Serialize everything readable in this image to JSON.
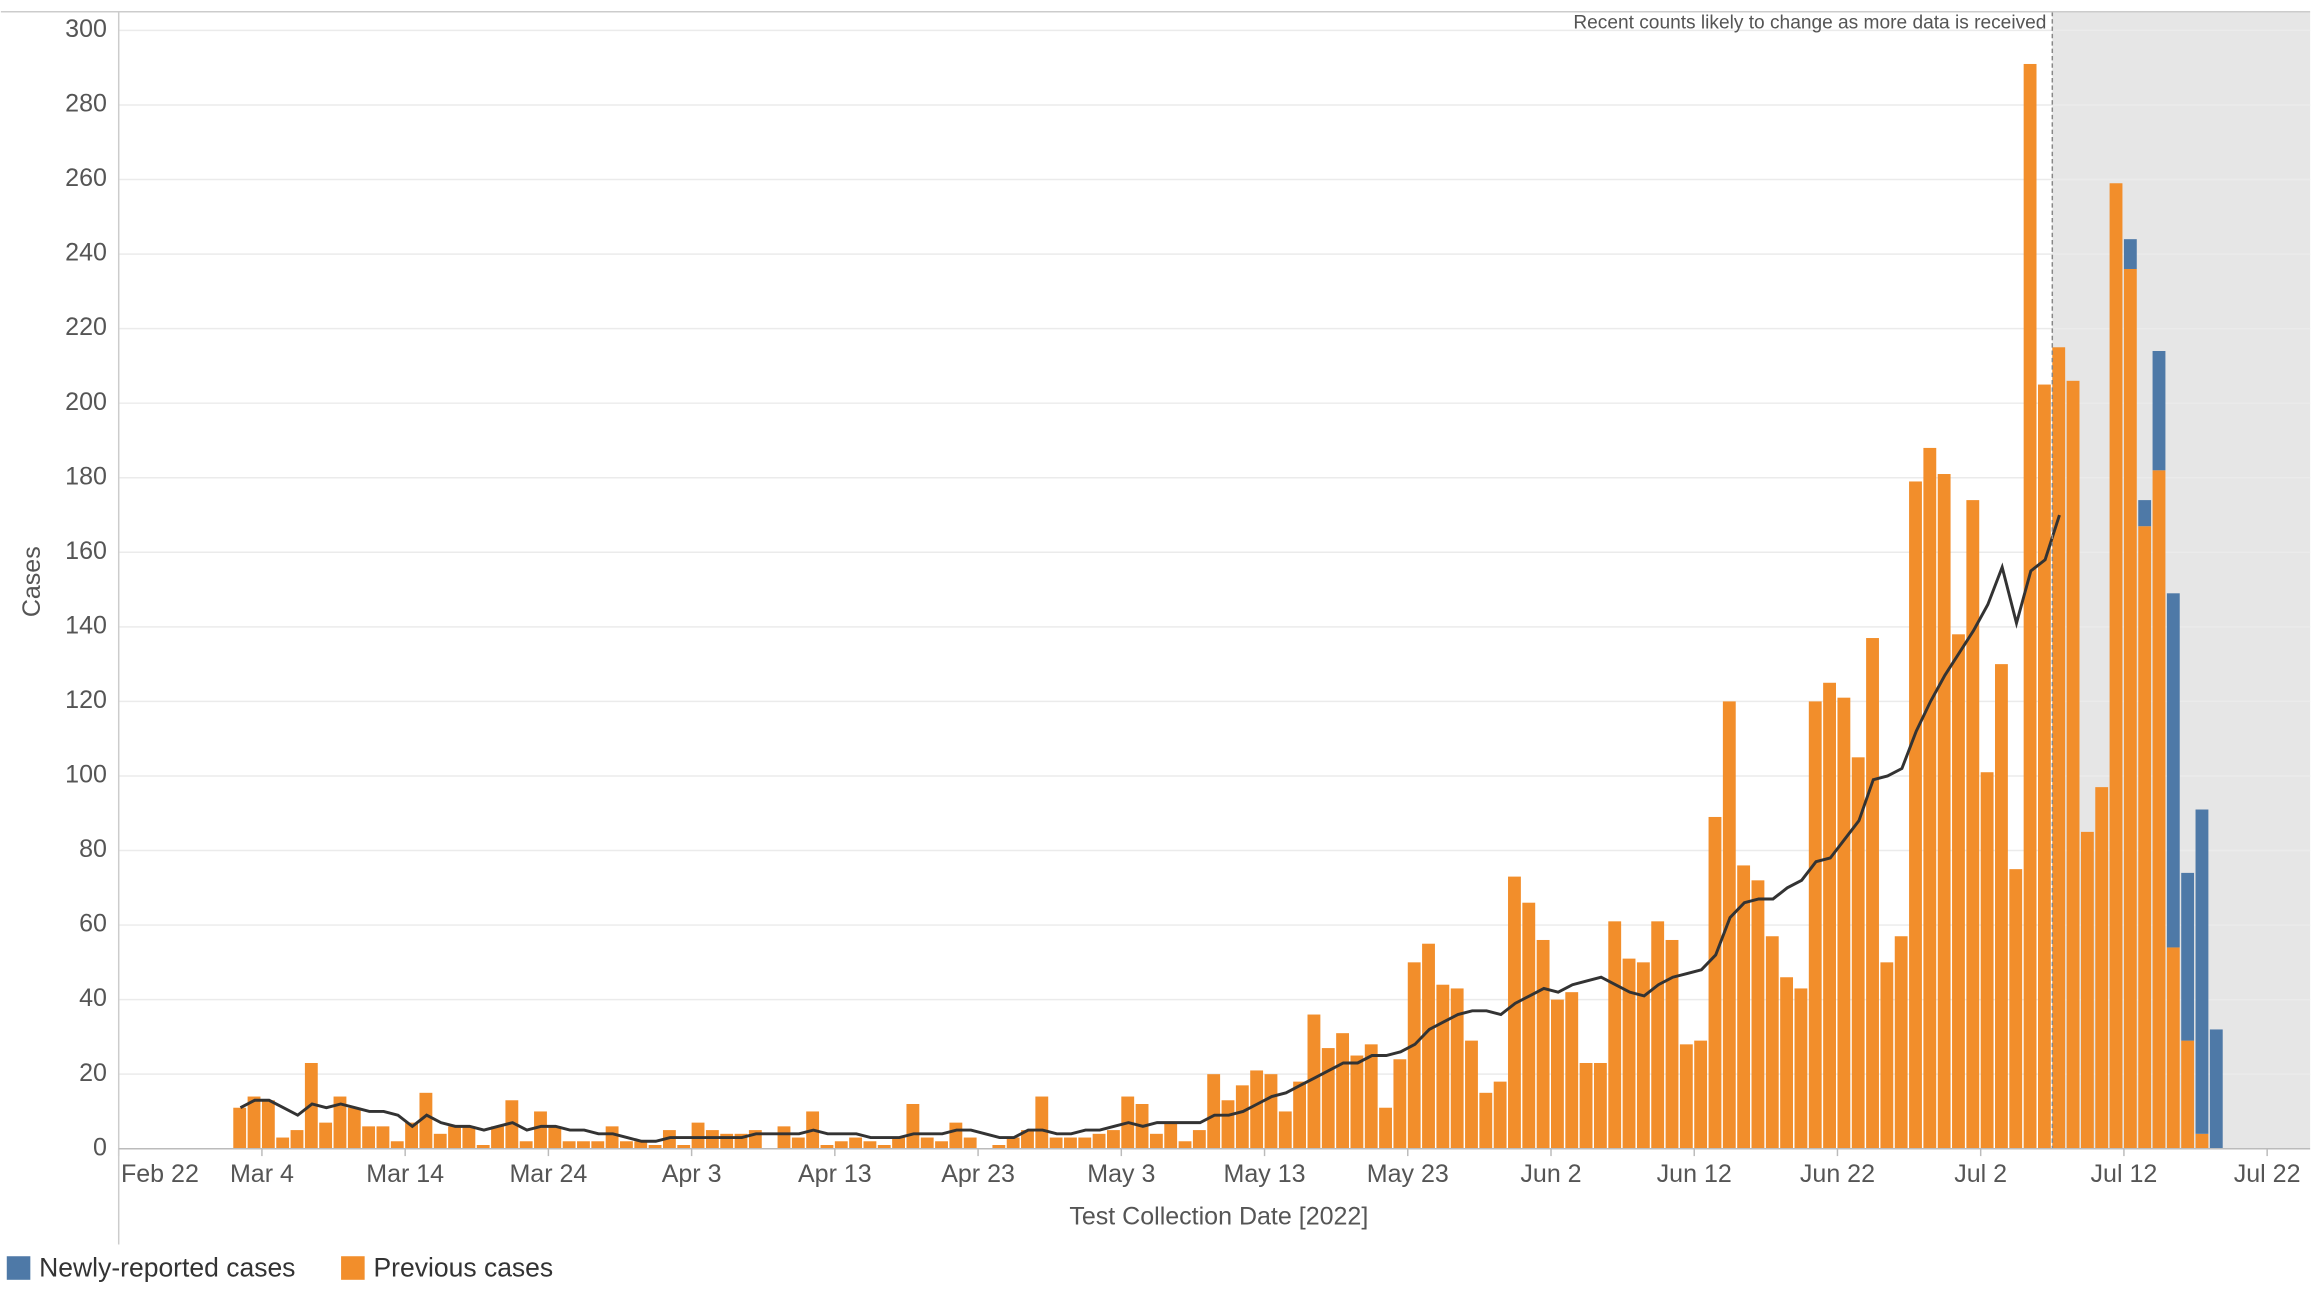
{
  "chart_data": {
    "type": "bar",
    "x_label": "Test Collection Date [2022]",
    "y_label": "Cases",
    "reference_line": {
      "x": "2022-07-07",
      "label": "Recent counts likely to change as more data is received"
    },
    "x": [
      "2022-03-02",
      "2022-03-03",
      "2022-03-04",
      "2022-03-05",
      "2022-03-06",
      "2022-03-07",
      "2022-03-08",
      "2022-03-09",
      "2022-03-10",
      "2022-03-11",
      "2022-03-12",
      "2022-03-13",
      "2022-03-14",
      "2022-03-15",
      "2022-03-16",
      "2022-03-17",
      "2022-03-18",
      "2022-03-19",
      "2022-03-20",
      "2022-03-21",
      "2022-03-22",
      "2022-03-23",
      "2022-03-24",
      "2022-03-25",
      "2022-03-26",
      "2022-03-27",
      "2022-03-28",
      "2022-03-29",
      "2022-03-30",
      "2022-03-31",
      "2022-04-01",
      "2022-04-02",
      "2022-04-03",
      "2022-04-04",
      "2022-04-05",
      "2022-04-06",
      "2022-04-07",
      "2022-04-08",
      "2022-04-09",
      "2022-04-10",
      "2022-04-11",
      "2022-04-12",
      "2022-04-13",
      "2022-04-14",
      "2022-04-15",
      "2022-04-16",
      "2022-04-17",
      "2022-04-18",
      "2022-04-19",
      "2022-04-20",
      "2022-04-21",
      "2022-04-22",
      "2022-04-23",
      "2022-04-24",
      "2022-04-25",
      "2022-04-26",
      "2022-04-27",
      "2022-04-28",
      "2022-04-29",
      "2022-04-30",
      "2022-05-01",
      "2022-05-02",
      "2022-05-03",
      "2022-05-04",
      "2022-05-05",
      "2022-05-06",
      "2022-05-07",
      "2022-05-08",
      "2022-05-09",
      "2022-05-10",
      "2022-05-11",
      "2022-05-12",
      "2022-05-13",
      "2022-05-14",
      "2022-05-15",
      "2022-05-16",
      "2022-05-17",
      "2022-05-18",
      "2022-05-19",
      "2022-05-20",
      "2022-05-21",
      "2022-05-22",
      "2022-05-23",
      "2022-05-24",
      "2022-05-25",
      "2022-05-26",
      "2022-05-27",
      "2022-05-28",
      "2022-05-29",
      "2022-05-30",
      "2022-05-31",
      "2022-06-01",
      "2022-06-02",
      "2022-06-03",
      "2022-06-04",
      "2022-06-05",
      "2022-06-06",
      "2022-06-07",
      "2022-06-08",
      "2022-06-09",
      "2022-06-10",
      "2022-06-11",
      "2022-06-12",
      "2022-06-13",
      "2022-06-14",
      "2022-06-15",
      "2022-06-16",
      "2022-06-17",
      "2022-06-18",
      "2022-06-19",
      "2022-06-20",
      "2022-06-21",
      "2022-06-22",
      "2022-06-23",
      "2022-06-24",
      "2022-06-25",
      "2022-06-26",
      "2022-06-27",
      "2022-06-28",
      "2022-06-29",
      "2022-06-30",
      "2022-07-01",
      "2022-07-02",
      "2022-07-03",
      "2022-07-04",
      "2022-07-05",
      "2022-07-06",
      "2022-07-07",
      "2022-07-08",
      "2022-07-09",
      "2022-07-10",
      "2022-07-11",
      "2022-07-12",
      "2022-07-13",
      "2022-07-14",
      "2022-07-15",
      "2022-07-16",
      "2022-07-17",
      "2022-07-18"
    ],
    "series": [
      {
        "name": "Newly-reported cases",
        "color": "#4e79a7",
        "values": [
          null,
          null,
          null,
          null,
          null,
          null,
          null,
          null,
          null,
          null,
          null,
          null,
          null,
          null,
          null,
          null,
          null,
          null,
          null,
          null,
          null,
          null,
          null,
          null,
          null,
          null,
          null,
          null,
          null,
          null,
          null,
          null,
          null,
          null,
          null,
          null,
          null,
          null,
          null,
          null,
          null,
          null,
          null,
          null,
          null,
          null,
          null,
          null,
          null,
          null,
          null,
          null,
          null,
          null,
          null,
          null,
          null,
          null,
          null,
          null,
          null,
          null,
          null,
          null,
          null,
          null,
          null,
          null,
          null,
          null,
          null,
          null,
          null,
          null,
          null,
          null,
          null,
          null,
          null,
          null,
          null,
          null,
          null,
          null,
          null,
          null,
          null,
          null,
          null,
          null,
          null,
          null,
          null,
          null,
          null,
          null,
          null,
          null,
          null,
          null,
          null,
          null,
          null,
          null,
          null,
          null,
          null,
          null,
          null,
          null,
          null,
          null,
          null,
          null,
          null,
          null,
          null,
          null,
          null,
          null,
          null,
          null,
          null,
          null,
          null,
          null,
          null,
          null,
          null,
          null,
          null,
          null,
          8,
          7,
          32,
          95,
          45,
          87,
          32
        ]
      },
      {
        "name": "Previous cases",
        "color": "#f28e2b",
        "values": [
          11,
          14,
          13,
          3,
          5,
          23,
          7,
          14,
          11,
          6,
          6,
          2,
          7,
          15,
          4,
          6,
          6,
          1,
          6,
          13,
          2,
          10,
          6,
          2,
          2,
          2,
          6,
          2,
          2,
          1,
          5,
          1,
          7,
          5,
          4,
          4,
          5,
          0,
          6,
          3,
          10,
          1,
          2,
          3,
          2,
          1,
          3,
          12,
          3,
          2,
          7,
          3,
          0,
          1,
          3,
          5,
          14,
          3,
          3,
          3,
          4,
          5,
          14,
          12,
          4,
          7,
          2,
          5,
          20,
          13,
          17,
          21,
          20,
          10,
          18,
          36,
          27,
          31,
          25,
          28,
          11,
          24,
          50,
          55,
          44,
          43,
          29,
          15,
          18,
          73,
          66,
          56,
          40,
          42,
          23,
          23,
          61,
          51,
          50,
          61,
          56,
          28,
          29,
          89,
          120,
          76,
          72,
          57,
          46,
          43,
          120,
          125,
          121,
          105,
          137,
          50,
          57,
          179,
          188,
          181,
          138,
          174,
          101,
          130,
          75,
          291,
          205,
          215,
          206,
          85,
          97,
          259,
          236,
          167,
          182,
          54,
          29,
          4,
          null
        ]
      },
      {
        "type": "line",
        "color": "#333333",
        "values": [
          11,
          13,
          13,
          11,
          9,
          12,
          11,
          12,
          11,
          10,
          10,
          9,
          6,
          9,
          7,
          6,
          6,
          5,
          6,
          7,
          5,
          6,
          6,
          5,
          5,
          4,
          4,
          3,
          2,
          2,
          3,
          3,
          3,
          3,
          3,
          3,
          4,
          4,
          4,
          4,
          5,
          4,
          4,
          4,
          3,
          3,
          3,
          4,
          4,
          4,
          5,
          5,
          4,
          3,
          3,
          5,
          5,
          4,
          4,
          5,
          5,
          6,
          7,
          6,
          7,
          7,
          7,
          7,
          9,
          9,
          10,
          12,
          14,
          15,
          17,
          19,
          21,
          23,
          23,
          25,
          25,
          26,
          28,
          32,
          34,
          36,
          37,
          37,
          36,
          39,
          41,
          43,
          42,
          44,
          45,
          46,
          44,
          42,
          41,
          44,
          46,
          47,
          48,
          52,
          62,
          66,
          67,
          67,
          70,
          72,
          77,
          78,
          83,
          88,
          99,
          100,
          102,
          112,
          120,
          127,
          133,
          139,
          146,
          156,
          141,
          155,
          158,
          170,
          null,
          null,
          null,
          null,
          null,
          null,
          null,
          null,
          null,
          null,
          null
        ]
      }
    ],
    "stacked": true,
    "xlim": [
      "2022-02-22",
      "2022-07-25"
    ],
    "xticks": [
      {
        "value": "2022-02-22",
        "label": "Feb 22"
      },
      {
        "value": "2022-03-04",
        "label": "Mar 4"
      },
      {
        "value": "2022-03-14",
        "label": "Mar 14"
      },
      {
        "value": "2022-03-24",
        "label": "Mar 24"
      },
      {
        "value": "2022-04-03",
        "label": "Apr 3"
      },
      {
        "value": "2022-04-13",
        "label": "Apr 13"
      },
      {
        "value": "2022-04-23",
        "label": "Apr 23"
      },
      {
        "value": "2022-05-03",
        "label": "May 3"
      },
      {
        "value": "2022-05-13",
        "label": "May 13"
      },
      {
        "value": "2022-05-23",
        "label": "May 23"
      },
      {
        "value": "2022-06-02",
        "label": "Jun 2"
      },
      {
        "value": "2022-06-12",
        "label": "Jun 12"
      },
      {
        "value": "2022-06-22",
        "label": "Jun 22"
      },
      {
        "value": "2022-07-02",
        "label": "Jul 2"
      },
      {
        "value": "2022-07-12",
        "label": "Jul 12"
      },
      {
        "value": "2022-07-22",
        "label": "Jul 22"
      }
    ],
    "ylim": [
      0,
      305
    ],
    "yticks": [
      0,
      20,
      40,
      60,
      80,
      100,
      120,
      140,
      160,
      180,
      200,
      220,
      240,
      260,
      280,
      300
    ],
    "grid": true,
    "legend": "bottom-left"
  }
}
